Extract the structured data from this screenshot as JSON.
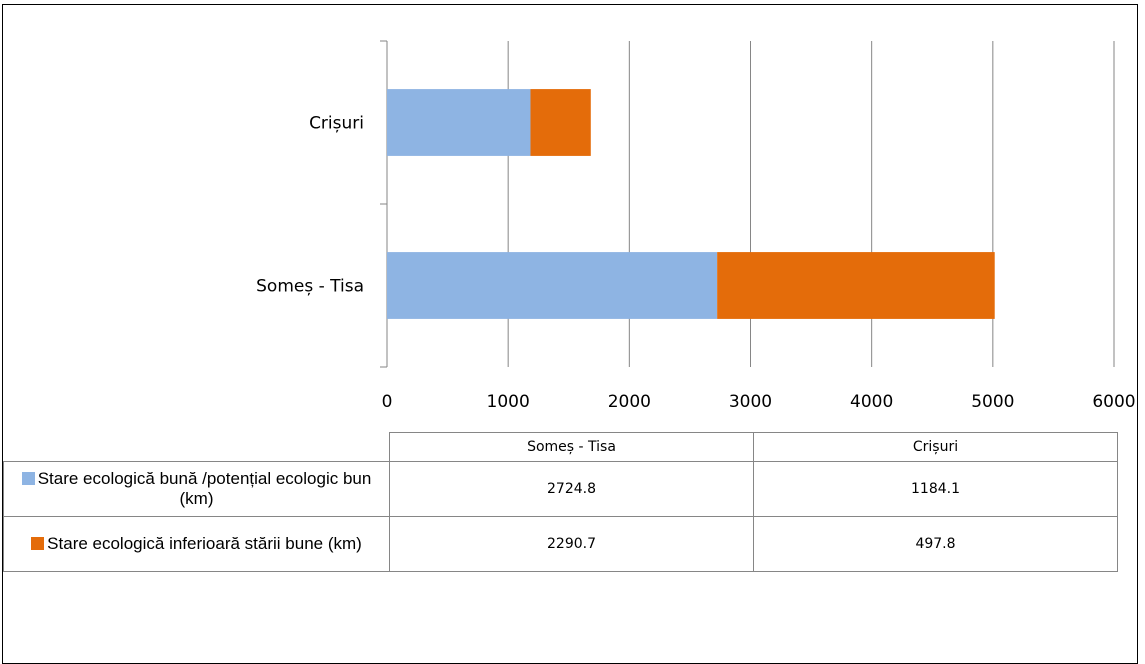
{
  "chart_data": {
    "type": "bar",
    "orientation": "horizontal",
    "stacked": true,
    "categories": [
      "Someș - Tisa",
      "Crișuri"
    ],
    "series": [
      {
        "name": "Stare ecologică bună /potențial ecologic bun (km)",
        "values": [
          2724.8,
          1184.1
        ],
        "color": "#8EB4E3",
        "display": [
          "2724.8",
          "1184.1"
        ]
      },
      {
        "name": "Stare ecologică inferioară stării bune (km)",
        "values": [
          2290.7,
          497.8
        ],
        "color": "#E46C0A",
        "display": [
          "2290.7",
          "497.8"
        ]
      }
    ],
    "xlim": [
      0,
      6000
    ],
    "xticks": [
      0,
      1000,
      2000,
      3000,
      4000,
      5000,
      6000
    ],
    "grid": true,
    "legend": "data table below chart"
  }
}
